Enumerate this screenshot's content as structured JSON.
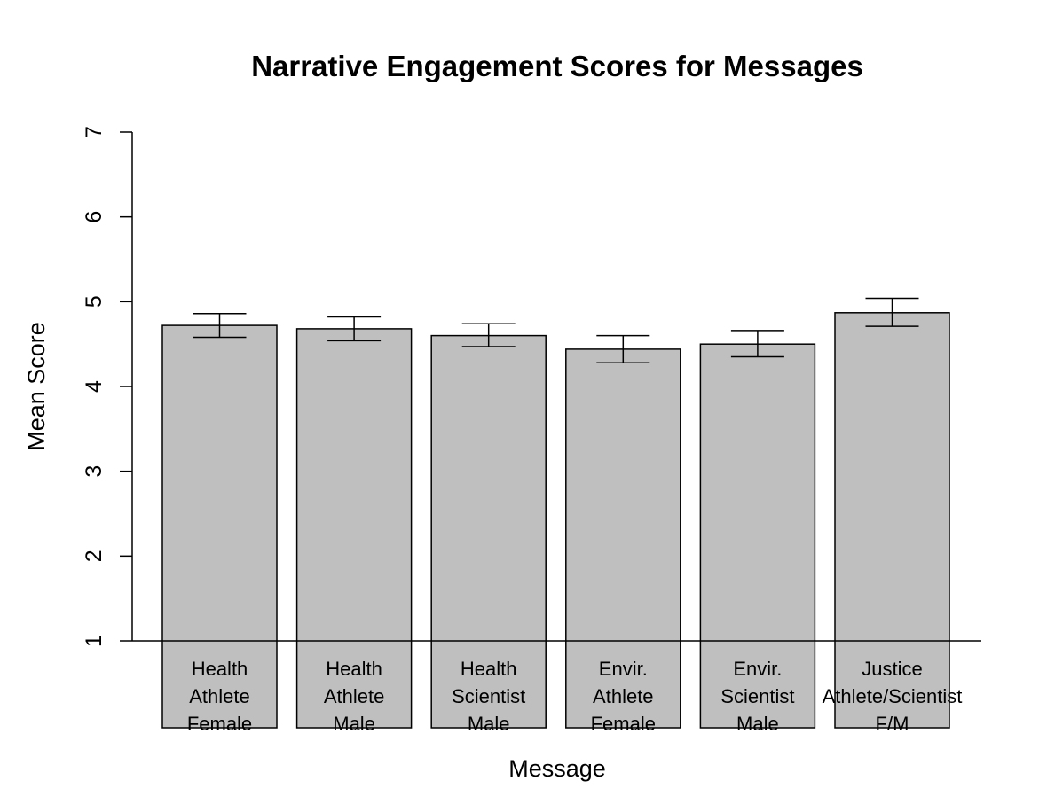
{
  "chart_data": {
    "type": "bar",
    "title": "Narrative Engagement Scores for Messages",
    "xlabel": "Message",
    "ylabel": "Mean Score",
    "ylim": [
      1,
      7
    ],
    "yticks": [
      1,
      2,
      3,
      4,
      5,
      6,
      7
    ],
    "categories": [
      [
        "Health",
        "Athlete",
        "Female"
      ],
      [
        "Health",
        "Athlete",
        "Male"
      ],
      [
        "Health",
        "Scientist",
        "Male"
      ],
      [
        "Envir.",
        "Athlete",
        "Female"
      ],
      [
        "Envir.",
        "Scientist",
        "Male"
      ],
      [
        "Justice",
        "Athlete/Scientist",
        "F/M"
      ]
    ],
    "values": [
      4.72,
      4.68,
      4.6,
      4.44,
      4.5,
      4.87
    ],
    "error_low": [
      4.58,
      4.54,
      4.47,
      4.28,
      4.35,
      4.71
    ],
    "error_high": [
      4.86,
      4.82,
      4.74,
      4.6,
      4.66,
      5.04
    ],
    "bar_color": "#bfbfbf",
    "grid": false,
    "legend": "none"
  }
}
